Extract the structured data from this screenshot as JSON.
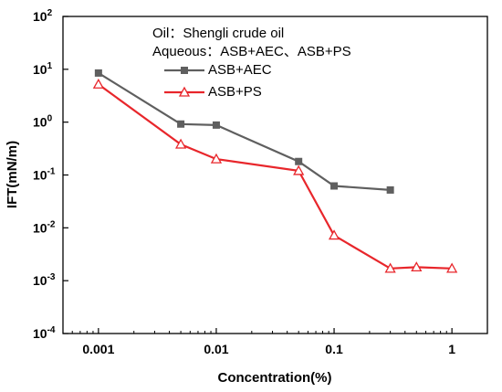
{
  "chart_data": {
    "type": "line",
    "xlabel": "Concentration(%)",
    "ylabel": "IFT(mN/m)",
    "x_scale": "log",
    "y_scale": "log",
    "xlim": [
      0.0005,
      2
    ],
    "ylim": [
      0.0001,
      100
    ],
    "x_ticks": [
      {
        "value": 0.001,
        "label": "0.001"
      },
      {
        "value": 0.01,
        "label": "0.01"
      },
      {
        "value": 0.1,
        "label": "0.1"
      },
      {
        "value": 1,
        "label": "1"
      }
    ],
    "y_ticks": [
      {
        "value": 0.0001,
        "base": "10",
        "exp": "-4"
      },
      {
        "value": 0.001,
        "base": "10",
        "exp": "-3"
      },
      {
        "value": 0.01,
        "base": "10",
        "exp": "-2"
      },
      {
        "value": 0.1,
        "base": "10",
        "exp": "-1"
      },
      {
        "value": 1,
        "base": "10",
        "exp": "0"
      },
      {
        "value": 10,
        "base": "10",
        "exp": "1"
      },
      {
        "value": 100,
        "base": "10",
        "exp": "2"
      }
    ],
    "annotations": {
      "oil": "Oil：Shengli crude oil",
      "aqueous": "Aqueous：ASB+AEC、ASB+PS"
    },
    "legend_position": "top-left",
    "grid": false,
    "series": [
      {
        "name": "ASB+AEC",
        "color": "#5f5f5f",
        "marker": "square",
        "points": [
          {
            "x": 0.001,
            "y": 8.5
          },
          {
            "x": 0.005,
            "y": 0.92
          },
          {
            "x": 0.01,
            "y": 0.88
          },
          {
            "x": 0.05,
            "y": 0.18
          },
          {
            "x": 0.1,
            "y": 0.062
          },
          {
            "x": 0.3,
            "y": 0.052
          }
        ]
      },
      {
        "name": "ASB+PS",
        "color": "#e8262b",
        "marker": "triangle-open",
        "points": [
          {
            "x": 0.001,
            "y": 5.2
          },
          {
            "x": 0.005,
            "y": 0.38
          },
          {
            "x": 0.01,
            "y": 0.2
          },
          {
            "x": 0.05,
            "y": 0.12
          },
          {
            "x": 0.1,
            "y": 0.0072
          },
          {
            "x": 0.3,
            "y": 0.0017
          },
          {
            "x": 0.5,
            "y": 0.0018
          },
          {
            "x": 1,
            "y": 0.0017
          }
        ]
      }
    ]
  }
}
